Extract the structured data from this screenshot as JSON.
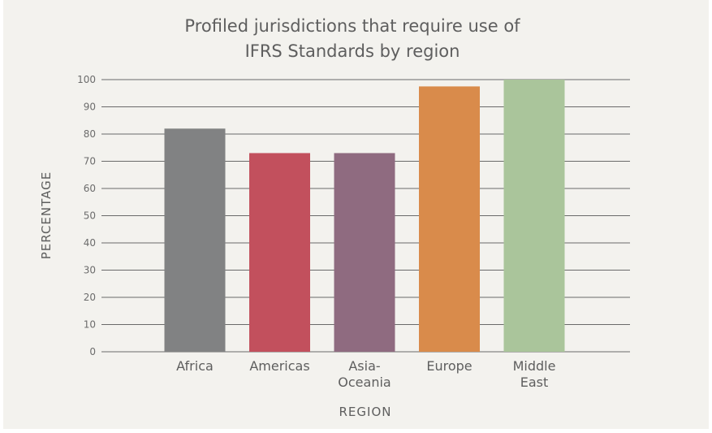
{
  "chart_data": {
    "type": "bar",
    "title_lines": [
      "Profiled jurisdictions that require use of",
      "IFRS Standards by region"
    ],
    "categories": [
      "Africa",
      "Americas",
      "Asia-Oceania",
      "Europe",
      "Middle East"
    ],
    "category_label_lines": [
      [
        "Africa"
      ],
      [
        "Americas"
      ],
      [
        "Asia-",
        "Oceania"
      ],
      [
        "Europe"
      ],
      [
        "Middle",
        "East"
      ]
    ],
    "values": [
      82,
      73,
      73,
      97.5,
      100
    ],
    "colors": [
      "#818283",
      "#c2505d",
      "#8f6b80",
      "#d98b4b",
      "#aac59b"
    ],
    "xlabel": "REGION",
    "ylabel": "PERCENTAGE",
    "ylim": [
      0,
      100
    ],
    "yticks": [
      0,
      10,
      20,
      30,
      40,
      50,
      60,
      70,
      80,
      90,
      100
    ],
    "grid": true
  }
}
